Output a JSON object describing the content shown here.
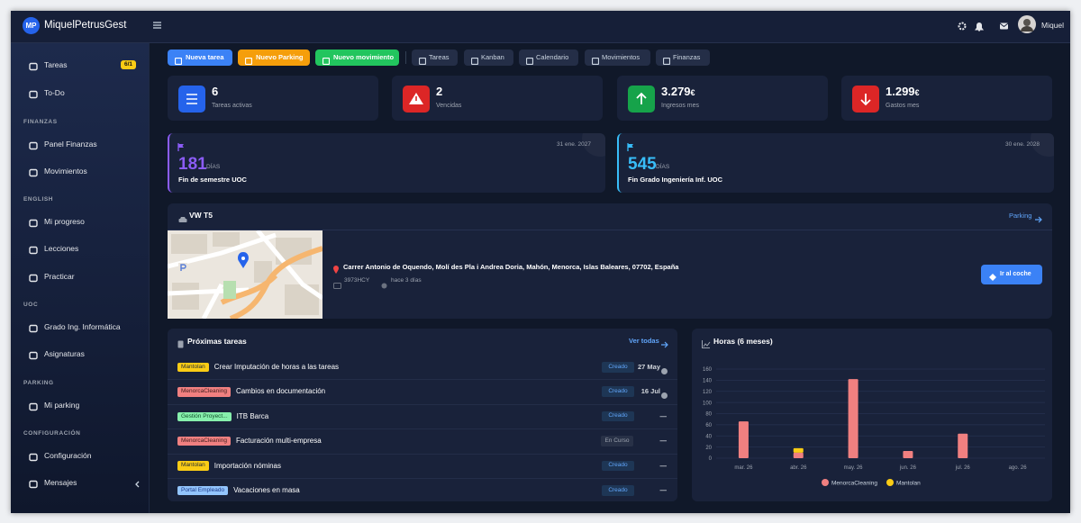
{
  "brand": {
    "logo": "MP",
    "name": "MiquelPetrusGest"
  },
  "user": {
    "name": "Miquel"
  },
  "sidebar": {
    "top": [
      {
        "label": "Tareas",
        "badge": "6/1"
      },
      {
        "label": "To-Do"
      }
    ],
    "sections": [
      {
        "title": "FINANZAS",
        "items": [
          "Panel Finanzas",
          "Movimientos"
        ]
      },
      {
        "title": "ENGLISH",
        "items": [
          "Mi progreso",
          "Lecciones",
          "Practicar"
        ]
      },
      {
        "title": "UOC",
        "items": [
          "Grado Ing. Informática",
          "Asignaturas"
        ]
      },
      {
        "title": "PARKING",
        "items": [
          "Mi parking"
        ]
      },
      {
        "title": "CONFIGURACIÓN",
        "items": [
          "Configuración",
          "Mensajes"
        ]
      }
    ]
  },
  "actions": [
    "Nueva tarea",
    "Nuevo Parking",
    "Nuevo movimiento"
  ],
  "shortcuts": [
    "Tareas",
    "Kanban",
    "Calendario",
    "Movimientos",
    "Finanzas"
  ],
  "stats": [
    {
      "value": "6",
      "label": "Tareas activas"
    },
    {
      "value": "2",
      "label": "Vencidas"
    },
    {
      "value": "3.279",
      "unit": "€",
      "label": "Ingresos mes"
    },
    {
      "value": "1.299",
      "unit": "€",
      "label": "Gastos mes"
    }
  ],
  "countdowns": [
    {
      "date": "31 ene. 2027",
      "days": "181",
      "unit": "DÍAS",
      "label": "Fin de semestre UOC"
    },
    {
      "date": "30 ene. 2028",
      "days": "545",
      "unit": "DÍAS",
      "label": "Fin Grado Ingeniería Inf. UOC"
    }
  ],
  "vehicle": {
    "title": "VW T5",
    "link": "Parking",
    "address": "Carrer Antonio de Oquendo, Molí des Pla i Andrea Doria, Mahón, Menorca, Islas Baleares, 07702, España",
    "plate": "3973HCY",
    "time": "hace 3 días",
    "button": "Ir al coche"
  },
  "tasks": {
    "title": "Próximas tareas",
    "link": "Ver todas",
    "rows": [
      {
        "tag": "Mantolan",
        "title": "Crear Imputación de horas a las tareas",
        "status": "Creado",
        "due": "27 May"
      },
      {
        "tag": "MenorcaCleaning",
        "title": "Cambios en documentación",
        "status": "Creado",
        "due": "16 Jul"
      },
      {
        "tag": "Gestión Proyect...",
        "title": "ITB Barca",
        "status": "Creado",
        "due": "—"
      },
      {
        "tag": "MenorcaCleaning",
        "title": "Facturación multi-empresa",
        "status": "En Curso",
        "due": "—"
      },
      {
        "tag": "Mantolan",
        "title": "Importación nóminas",
        "status": "Creado",
        "due": "—"
      },
      {
        "tag": "Portal Empleado",
        "title": "Vacaciones en masa",
        "status": "Creado",
        "due": "—"
      }
    ]
  },
  "chart_data": {
    "type": "bar",
    "title": "Horas (6 meses)",
    "stacked": true,
    "grid": true,
    "categories": [
      "mar. 26",
      "abr. 26",
      "may. 26",
      "jun. 26",
      "jul. 26",
      "ago. 26"
    ],
    "series": [
      {
        "name": "MenorcaCleaning",
        "color": "#f08080",
        "values": [
          66,
          10,
          142,
          13,
          44,
          0
        ]
      },
      {
        "name": "Mantolan",
        "color": "#facc15",
        "values": [
          0,
          8,
          0,
          0,
          0,
          0
        ]
      }
    ],
    "ylim": [
      0,
      160
    ],
    "yticks": [
      0,
      20,
      40,
      60,
      80,
      100,
      120,
      140,
      160
    ]
  }
}
